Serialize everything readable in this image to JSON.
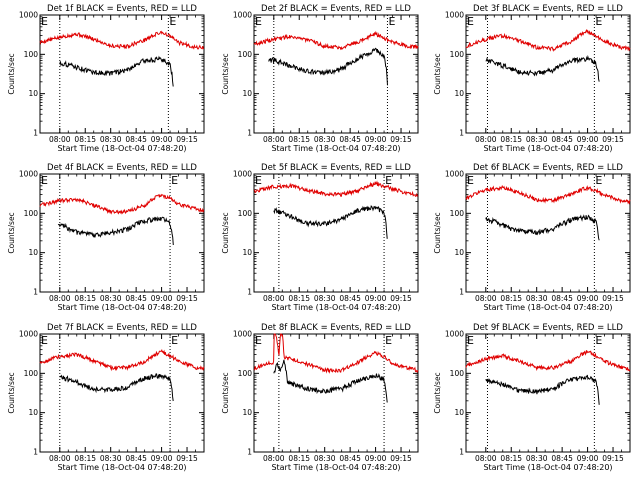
{
  "page": {
    "background": "#ffffff"
  },
  "colors": {
    "events": "#000000",
    "lld": "#e00000",
    "axes": "#000000",
    "marker": "#000000"
  },
  "chart_data": [
    {
      "type": "line",
      "title": "Det 1f BLACK = Events, RED = LLD",
      "xlabel": "Start Time (18-Oct-04 07:48:20)",
      "ylabel": "Counts/sec",
      "x_tick_labels": [
        "08:00",
        "08:15",
        "08:30",
        "08:45",
        "09:00",
        "09:15"
      ],
      "y_tick_labels": [
        "1",
        "10",
        "100",
        "1000"
      ],
      "y_scale": "log",
      "ylim": [
        1,
        1000
      ],
      "xlim": [
        "07:48:20",
        "09:25"
      ],
      "markers": [
        "08:00",
        "09:04"
      ],
      "flag_labels": [
        "E",
        "E"
      ],
      "series": [
        {
          "color": "#e00000",
          "x": [
            "07:48",
            "08:00",
            "08:10",
            "08:20",
            "08:30",
            "08:40",
            "08:50",
            "09:00",
            "09:10",
            "09:20",
            "09:25"
          ],
          "values": [
            200,
            270,
            330,
            240,
            165,
            160,
            230,
            370,
            200,
            150,
            150
          ]
        },
        {
          "color": "#000000",
          "x": [
            "08:00",
            "08:05",
            "08:10",
            "08:15",
            "08:20",
            "08:30",
            "08:40",
            "08:50",
            "09:00",
            "09:05",
            "09:07"
          ],
          "values": [
            60,
            55,
            47,
            40,
            35,
            33,
            40,
            70,
            75,
            55,
            12
          ]
        }
      ]
    },
    {
      "type": "line",
      "title": "Det 2f BLACK = Events, RED = LLD",
      "xlabel": "Start Time (18-Oct-04 07:48:20)",
      "ylabel": "Counts/sec",
      "x_tick_labels": [
        "08:00",
        "08:15",
        "08:30",
        "08:45",
        "09:00",
        "09:15"
      ],
      "y_tick_labels": [
        "1",
        "10",
        "100",
        "1000"
      ],
      "y_scale": "log",
      "ylim": [
        1,
        1000
      ],
      "xlim": [
        "07:48:20",
        "09:25"
      ],
      "markers": [
        "08:00",
        "09:07"
      ],
      "flag_labels": [
        "E",
        "E"
      ],
      "series": [
        {
          "color": "#e00000",
          "x": [
            "07:48",
            "08:00",
            "08:10",
            "08:20",
            "08:30",
            "08:40",
            "08:50",
            "09:00",
            "09:10",
            "09:20",
            "09:25"
          ],
          "values": [
            180,
            240,
            290,
            230,
            160,
            150,
            210,
            330,
            200,
            160,
            150
          ]
        },
        {
          "color": "#000000",
          "x": [
            "07:57",
            "08:00",
            "08:05",
            "08:10",
            "08:20",
            "08:30",
            "08:40",
            "08:50",
            "09:00",
            "09:05",
            "09:07"
          ],
          "values": [
            70,
            72,
            60,
            50,
            37,
            33,
            42,
            80,
            130,
            90,
            15
          ]
        }
      ]
    },
    {
      "type": "line",
      "title": "Det 3f BLACK = Events, RED = LLD",
      "xlabel": "Start Time (18-Oct-04 07:48:20)",
      "ylabel": "Counts/sec",
      "x_tick_labels": [
        "08:00",
        "08:15",
        "08:30",
        "08:45",
        "09:00",
        "09:15"
      ],
      "y_tick_labels": [
        "1",
        "10",
        "100",
        "1000"
      ],
      "y_scale": "log",
      "ylim": [
        1,
        1000
      ],
      "xlim": [
        "07:48:20",
        "09:25"
      ],
      "markers": [
        "08:01",
        "09:04"
      ],
      "flag_labels": [
        "E",
        "E"
      ],
      "series": [
        {
          "color": "#e00000",
          "x": [
            "07:48",
            "08:00",
            "08:10",
            "08:20",
            "08:30",
            "08:40",
            "08:50",
            "09:00",
            "09:10",
            "09:20",
            "09:25"
          ],
          "values": [
            160,
            240,
            300,
            220,
            150,
            140,
            210,
            380,
            210,
            150,
            140
          ]
        },
        {
          "color": "#000000",
          "x": [
            "08:00",
            "08:05",
            "08:10",
            "08:15",
            "08:20",
            "08:30",
            "08:40",
            "08:50",
            "09:00",
            "09:05",
            "09:07"
          ],
          "values": [
            70,
            62,
            52,
            42,
            36,
            33,
            40,
            68,
            78,
            60,
            15
          ]
        }
      ]
    },
    {
      "type": "line",
      "title": "Det 4f BLACK = Events, RED = LLD",
      "xlabel": "Start Time (18-Oct-04 07:48:20)",
      "ylabel": "Counts/sec",
      "x_tick_labels": [
        "08:00",
        "08:15",
        "08:30",
        "08:45",
        "09:00",
        "09:15"
      ],
      "y_tick_labels": [
        "1",
        "10",
        "100",
        "1000"
      ],
      "y_scale": "log",
      "ylim": [
        1,
        1000
      ],
      "xlim": [
        "07:48:20",
        "09:25"
      ],
      "markers": [
        "08:00",
        "09:05"
      ],
      "flag_labels": [
        "E",
        "E"
      ],
      "series": [
        {
          "color": "#e00000",
          "x": [
            "07:48",
            "08:00",
            "08:10",
            "08:20",
            "08:30",
            "08:40",
            "08:50",
            "09:00",
            "09:10",
            "09:20",
            "09:25"
          ],
          "values": [
            160,
            210,
            230,
            160,
            110,
            110,
            160,
            300,
            170,
            130,
            120
          ]
        },
        {
          "color": "#000000",
          "x": [
            "07:59",
            "08:05",
            "08:10",
            "08:15",
            "08:20",
            "08:30",
            "08:40",
            "08:50",
            "09:00",
            "09:05",
            "09:07"
          ],
          "values": [
            55,
            42,
            33,
            30,
            28,
            32,
            40,
            65,
            75,
            55,
            15
          ]
        }
      ]
    },
    {
      "type": "line",
      "title": "Det 5f BLACK = Events, RED = LLD",
      "xlabel": "Start Time (18-Oct-04 07:48:20)",
      "ylabel": "Counts/sec",
      "x_tick_labels": [
        "08:00",
        "08:15",
        "08:30",
        "08:45",
        "09:00",
        "09:15"
      ],
      "y_tick_labels": [
        "1",
        "10",
        "100",
        "1000"
      ],
      "y_scale": "log",
      "ylim": [
        1,
        1000
      ],
      "xlim": [
        "07:48:20",
        "09:25"
      ],
      "markers": [
        "08:03",
        "09:05"
      ],
      "flag_labels": [
        "E",
        "E"
      ],
      "series": [
        {
          "color": "#e00000",
          "x": [
            "07:48",
            "08:00",
            "08:10",
            "08:20",
            "08:30",
            "08:40",
            "08:50",
            "09:00",
            "09:10",
            "09:20",
            "09:25"
          ],
          "values": [
            350,
            480,
            500,
            390,
            310,
            300,
            380,
            580,
            420,
            310,
            300
          ]
        },
        {
          "color": "#000000",
          "x": [
            "08:00",
            "08:05",
            "08:10",
            "08:15",
            "08:20",
            "08:30",
            "08:40",
            "08:50",
            "09:00",
            "09:05",
            "09:07"
          ],
          "values": [
            120,
            105,
            85,
            65,
            55,
            55,
            70,
            120,
            140,
            100,
            18
          ]
        }
      ]
    },
    {
      "type": "line",
      "title": "Det 6f BLACK = Events, RED = LLD",
      "xlabel": "Start Time (18-Oct-04 07:48:20)",
      "ylabel": "Counts/sec",
      "x_tick_labels": [
        "08:00",
        "08:15",
        "08:30",
        "08:45",
        "09:00",
        "09:15"
      ],
      "y_tick_labels": [
        "1",
        "10",
        "100",
        "1000"
      ],
      "y_scale": "log",
      "ylim": [
        1,
        1000
      ],
      "xlim": [
        "07:48:20",
        "09:25"
      ],
      "markers": [
        "08:01",
        "09:04"
      ],
      "flag_labels": [
        "E",
        "E"
      ],
      "series": [
        {
          "color": "#e00000",
          "x": [
            "07:48",
            "08:00",
            "08:10",
            "08:20",
            "08:30",
            "08:40",
            "08:50",
            "09:00",
            "09:10",
            "09:20",
            "09:25"
          ],
          "values": [
            230,
            400,
            450,
            330,
            220,
            210,
            300,
            450,
            290,
            210,
            200
          ]
        },
        {
          "color": "#000000",
          "x": [
            "08:00",
            "08:05",
            "08:10",
            "08:15",
            "08:20",
            "08:30",
            "08:40",
            "08:50",
            "09:00",
            "09:05",
            "09:07"
          ],
          "values": [
            72,
            62,
            50,
            40,
            35,
            33,
            40,
            68,
            80,
            60,
            15
          ]
        }
      ]
    },
    {
      "type": "line",
      "title": "Det 7f BLACK = Events, RED = LLD",
      "xlabel": "Start Time (18-Oct-04 07:48:20)",
      "ylabel": "Counts/sec",
      "x_tick_labels": [
        "08:00",
        "08:15",
        "08:30",
        "08:45",
        "09:00",
        "09:15"
      ],
      "y_tick_labels": [
        "1",
        "10",
        "100",
        "1000"
      ],
      "y_scale": "log",
      "ylim": [
        1,
        1000
      ],
      "xlim": [
        "07:48:20",
        "09:25"
      ],
      "markers": [
        "08:00",
        "09:05"
      ],
      "flag_labels": [
        "E",
        "E"
      ],
      "series": [
        {
          "color": "#e00000",
          "x": [
            "07:48",
            "08:00",
            "08:10",
            "08:20",
            "08:30",
            "08:40",
            "08:50",
            "09:00",
            "09:10",
            "09:20",
            "09:25"
          ],
          "values": [
            180,
            270,
            300,
            210,
            140,
            140,
            200,
            360,
            200,
            140,
            140
          ]
        },
        {
          "color": "#000000",
          "x": [
            "08:00",
            "08:05",
            "08:10",
            "08:15",
            "08:20",
            "08:30",
            "08:40",
            "08:50",
            "09:00",
            "09:05",
            "09:07"
          ],
          "values": [
            80,
            72,
            60,
            48,
            40,
            38,
            45,
            75,
            90,
            70,
            15
          ]
        }
      ]
    },
    {
      "type": "line",
      "title": "Det 8f BLACK = Events, RED = LLD",
      "xlabel": "Start Time (18-Oct-04 07:48:20)",
      "ylabel": "Counts/sec",
      "x_tick_labels": [
        "08:00",
        "08:15",
        "08:30",
        "08:45",
        "09:00",
        "09:15"
      ],
      "y_tick_labels": [
        "1",
        "10",
        "100",
        "1000"
      ],
      "y_scale": "log",
      "ylim": [
        1,
        1000
      ],
      "xlim": [
        "07:48:20",
        "09:25"
      ],
      "markers": [
        "08:03",
        "09:05"
      ],
      "flag_labels": [
        "E",
        "E"
      ],
      "series": [
        {
          "color": "#e00000",
          "x": [
            "07:48",
            "07:55",
            "08:00",
            "08:00",
            "08:01",
            "08:03",
            "08:04",
            "08:05",
            "08:06",
            "08:10",
            "08:20",
            "08:30",
            "08:40",
            "08:50",
            "09:00",
            "09:10",
            "09:20",
            "09:25"
          ],
          "values": [
            130,
            170,
            190,
            1000,
            1000,
            250,
            1000,
            1000,
            260,
            230,
            170,
            120,
            120,
            190,
            340,
            180,
            130,
            120
          ]
        },
        {
          "color": "#000000",
          "x": [
            "08:00",
            "08:02",
            "08:04",
            "08:06",
            "08:08",
            "08:10",
            "08:15",
            "08:20",
            "08:30",
            "08:40",
            "08:50",
            "09:00",
            "09:05",
            "09:07"
          ],
          "values": [
            100,
            170,
            130,
            200,
            60,
            55,
            48,
            40,
            36,
            40,
            65,
            90,
            70,
            15
          ]
        }
      ]
    },
    {
      "type": "line",
      "title": "Det 9f BLACK = Events, RED = LLD",
      "xlabel": "Start Time (18-Oct-04 07:48:20)",
      "ylabel": "Counts/sec",
      "x_tick_labels": [
        "08:00",
        "08:15",
        "08:30",
        "08:45",
        "09:00",
        "09:15"
      ],
      "y_tick_labels": [
        "1",
        "10",
        "100",
        "1000"
      ],
      "y_scale": "log",
      "ylim": [
        1,
        1000
      ],
      "xlim": [
        "07:48:20",
        "09:25"
      ],
      "markers": [
        "08:01",
        "09:04"
      ],
      "flag_labels": [
        "E",
        "E"
      ],
      "series": [
        {
          "color": "#e00000",
          "x": [
            "07:48",
            "08:00",
            "08:10",
            "08:20",
            "08:30",
            "08:40",
            "08:50",
            "09:00",
            "09:10",
            "09:20",
            "09:25"
          ],
          "values": [
            150,
            230,
            280,
            200,
            140,
            140,
            200,
            360,
            200,
            140,
            130
          ]
        },
        {
          "color": "#000000",
          "x": [
            "08:00",
            "08:05",
            "08:10",
            "08:15",
            "08:20",
            "08:30",
            "08:40",
            "08:50",
            "09:00",
            "09:05",
            "09:07"
          ],
          "values": [
            70,
            62,
            52,
            42,
            36,
            34,
            40,
            70,
            80,
            60,
            15
          ]
        }
      ]
    }
  ]
}
